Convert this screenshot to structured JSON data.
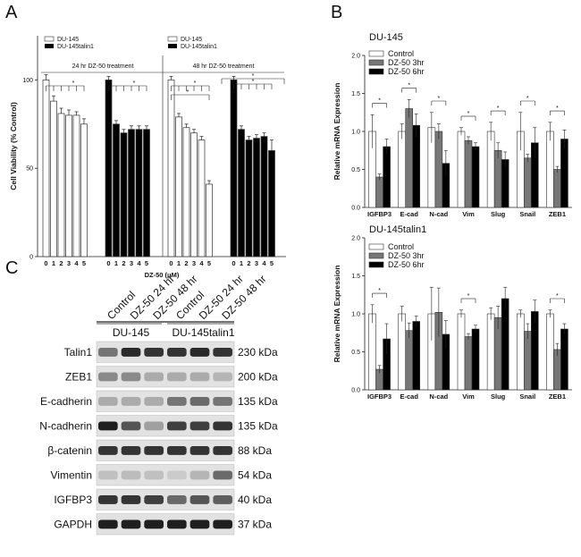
{
  "panel_labels": {
    "a": "A",
    "b": "B",
    "c": "C"
  },
  "chart_data": [
    {
      "type": "bar",
      "panel": "A",
      "ylabel": "Cell Viability (% Control)",
      "xlabel": "DZ-50 (μM)",
      "ylim": [
        0,
        125
      ],
      "yticks": [
        "0",
        "50",
        "100"
      ],
      "categories": [
        "0",
        "1",
        "2",
        "3",
        "4",
        "5"
      ],
      "legend_left": [
        "DU-145",
        "DU-145talin1"
      ],
      "legend_right": [
        "DU-145",
        "DU-145talin1"
      ],
      "treatment_24": "24 hr DZ-50 treatment",
      "treatment_48": "48 hr DZ-50 treatment",
      "star": "*",
      "groups": [
        {
          "name": "DU-145 24 hr",
          "color": "#ffffff",
          "values": [
            100,
            88,
            81,
            80,
            80,
            75
          ],
          "errors": [
            3,
            3,
            3,
            3,
            2,
            3
          ]
        },
        {
          "name": "DU-145talin1 24 hr",
          "color": "#000000",
          "values": [
            100,
            75,
            70,
            72,
            72,
            72
          ],
          "errors": [
            2,
            2,
            2,
            2,
            2,
            2
          ]
        },
        {
          "name": "DU-145 48 hr",
          "color": "#ffffff",
          "values": [
            100,
            79,
            73,
            70,
            66,
            41
          ],
          "errors": [
            2,
            2,
            2,
            2,
            2,
            2
          ]
        },
        {
          "name": "DU-145talin1 48 hr",
          "color": "#000000",
          "values": [
            100,
            72,
            66,
            67,
            68,
            60
          ],
          "errors": [
            2,
            2,
            2,
            2,
            2,
            6
          ]
        }
      ]
    },
    {
      "type": "bar",
      "panel": "B-top",
      "title": "DU-145",
      "ylabel": "Relative mRNA Expression",
      "ylim": [
        0,
        2.0
      ],
      "yticks": [
        "0.0",
        "0.5",
        "1.0",
        "1.5",
        "2.0"
      ],
      "categories": [
        "IGFBP3",
        "E-cad",
        "N-cad",
        "Vim",
        "Slug",
        "Snail",
        "ZEB1"
      ],
      "legend": [
        "Control",
        "DZ-50 3hr",
        "DZ-50 6hr"
      ],
      "star": "*",
      "series": [
        {
          "name": "Control",
          "color": "#ffffff",
          "values": [
            1.0,
            1.0,
            1.05,
            1.0,
            1.0,
            1.0,
            1.0
          ],
          "errors": [
            0.22,
            0.1,
            0.2,
            0.05,
            0.12,
            0.25,
            0.12
          ]
        },
        {
          "name": "DZ-50 3hr",
          "color": "#777777",
          "values": [
            0.4,
            1.3,
            1.0,
            0.88,
            0.75,
            0.65,
            0.5
          ],
          " errors": [],
          "errors": [
            0.04,
            0.12,
            0.1,
            0.05,
            0.1,
            0.05,
            0.04
          ]
        },
        {
          "name": "DZ-50 6hr",
          "color": "#000000",
          "values": [
            0.8,
            1.08,
            0.58,
            0.8,
            0.63,
            0.85,
            0.9
          ],
          "errors": [
            0.1,
            0.15,
            0.17,
            0.05,
            0.1,
            0.2,
            0.12
          ]
        }
      ],
      "sig": [
        0,
        1,
        2,
        3,
        4,
        5,
        6
      ]
    },
    {
      "type": "bar",
      "panel": "B-bottom",
      "title": "DU-145talin1",
      "ylabel": "Relative mRNA Expression",
      "ylim": [
        0,
        2.0
      ],
      "yticks": [
        "0.0",
        "0.5",
        "1.0",
        "1.5",
        "2.0"
      ],
      "categories": [
        "IGFBP3",
        "E-cad",
        "N-cad",
        "Vim",
        "Slug",
        "Snail",
        "ZEB1"
      ],
      "legend": [
        "Control",
        "DZ-50 3hr",
        "DZ-50 6hr"
      ],
      "star": "*",
      "series": [
        {
          "name": "Control",
          "color": "#ffffff",
          "values": [
            1.0,
            1.0,
            1.0,
            1.0,
            1.0,
            1.0,
            1.0
          ],
          "errors": [
            0.12,
            0.1,
            0.35,
            0.05,
            0.08,
            0.05,
            0.05
          ]
        },
        {
          "name": "DZ-50 3hr",
          "color": "#777777",
          "values": [
            0.27,
            0.78,
            1.02,
            0.7,
            0.95,
            0.77,
            0.53
          ],
          "errors": [
            0.05,
            0.1,
            0.32,
            0.04,
            0.15,
            0.1,
            0.08
          ]
        },
        {
          "name": "DZ-50 6hr",
          "color": "#000000",
          "values": [
            0.67,
            0.9,
            0.73,
            0.8,
            1.2,
            1.03,
            0.8
          ],
          "errors": [
            0.2,
            0.07,
            0.18,
            0.05,
            0.15,
            0.15,
            0.07
          ]
        }
      ],
      "sig": [
        0,
        3,
        6
      ]
    }
  ],
  "blot": {
    "lanes": [
      "Control",
      "DZ-50 24 hr",
      "DZ-50 48 hr",
      "Control",
      "DZ-50 24 hr",
      "DZ-50 48 hr"
    ],
    "groups": [
      "DU-145",
      "DU-145talin1"
    ],
    "proteins": [
      {
        "name": "Talin1",
        "kda": "230 kDa",
        "intensity": [
          0.55,
          0.9,
          0.85,
          0.85,
          0.9,
          0.85
        ]
      },
      {
        "name": "ZEB1",
        "kda": "200 kDa",
        "intensity": [
          0.45,
          0.45,
          0.3,
          0.3,
          0.3,
          0.25
        ]
      },
      {
        "name": "E-cadherin",
        "kda": "135 kDa",
        "intensity": [
          0.3,
          0.3,
          0.3,
          0.55,
          0.6,
          0.55
        ]
      },
      {
        "name": "N-cadherin",
        "kda": "135 kDa",
        "intensity": [
          0.95,
          0.7,
          0.35,
          0.8,
          0.8,
          0.85
        ]
      },
      {
        "name": "β-catenin",
        "kda": "88 kDa",
        "intensity": [
          0.85,
          0.85,
          0.85,
          0.85,
          0.85,
          0.85
        ]
      },
      {
        "name": "Vimentin",
        "kda": "54 kDa",
        "intensity": [
          0.2,
          0.22,
          0.2,
          0.15,
          0.25,
          0.6
        ]
      },
      {
        "name": "IGFBP3",
        "kda": "40 kDa",
        "intensity": [
          0.85,
          0.85,
          0.8,
          0.6,
          0.7,
          0.65
        ]
      },
      {
        "name": "GAPDH",
        "kda": "37 kDa",
        "intensity": [
          0.95,
          0.95,
          0.95,
          0.95,
          0.95,
          0.95
        ]
      }
    ]
  }
}
